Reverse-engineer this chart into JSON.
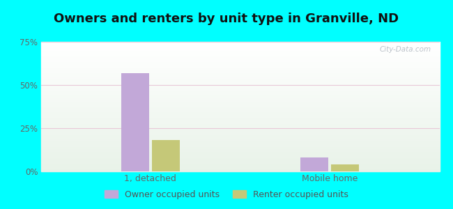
{
  "title": "Owners and renters by unit type in Granville, ND",
  "categories": [
    "1, detached",
    "Mobile home"
  ],
  "owner_values": [
    57,
    8
  ],
  "renter_values": [
    18,
    4
  ],
  "owner_color": "#c2a8d8",
  "renter_color": "#c5c878",
  "ylim": [
    0,
    75
  ],
  "yticks": [
    0,
    25,
    50,
    75
  ],
  "ytick_labels": [
    "0%",
    "25%",
    "50%",
    "75%"
  ],
  "background_color": "#00ffff",
  "grid_color": "#e8c8d8",
  "title_fontsize": 13,
  "legend_labels": [
    "Owner occupied units",
    "Renter occupied units"
  ],
  "watermark": "City-Data.com"
}
